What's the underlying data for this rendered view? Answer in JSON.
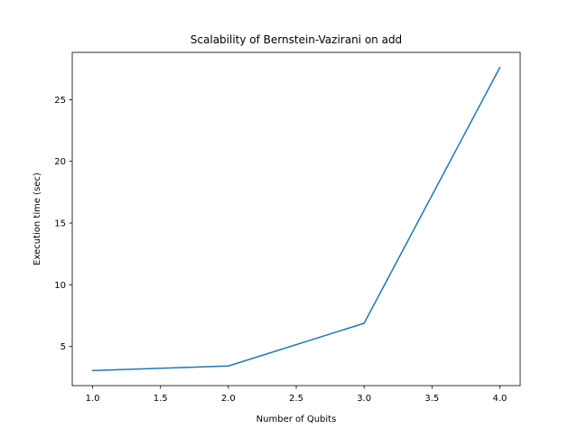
{
  "chart_data": {
    "type": "line",
    "title": "Scalability of Bernstein-Vazirani on add",
    "xlabel": "Number of Qubits",
    "ylabel": "Execution time (sec)",
    "x": [
      1.0,
      2.0,
      3.0,
      4.0
    ],
    "series": [
      {
        "values": [
          3.05,
          3.42,
          6.88,
          27.6
        ],
        "color": "#1f77b4"
      }
    ],
    "xlim": [
      0.85,
      4.15
    ],
    "ylim": [
      1.83,
      28.83
    ],
    "xticks": [
      1.0,
      1.5,
      2.0,
      2.5,
      3.0,
      3.5,
      4.0
    ],
    "xtick_labels": [
      "1.0",
      "1.5",
      "2.0",
      "2.5",
      "3.0",
      "3.5",
      "4.0"
    ],
    "yticks": [
      5,
      10,
      15,
      20,
      25
    ],
    "ytick_labels": [
      "5",
      "10",
      "15",
      "20",
      "25"
    ],
    "grid": false,
    "legend": "none"
  }
}
